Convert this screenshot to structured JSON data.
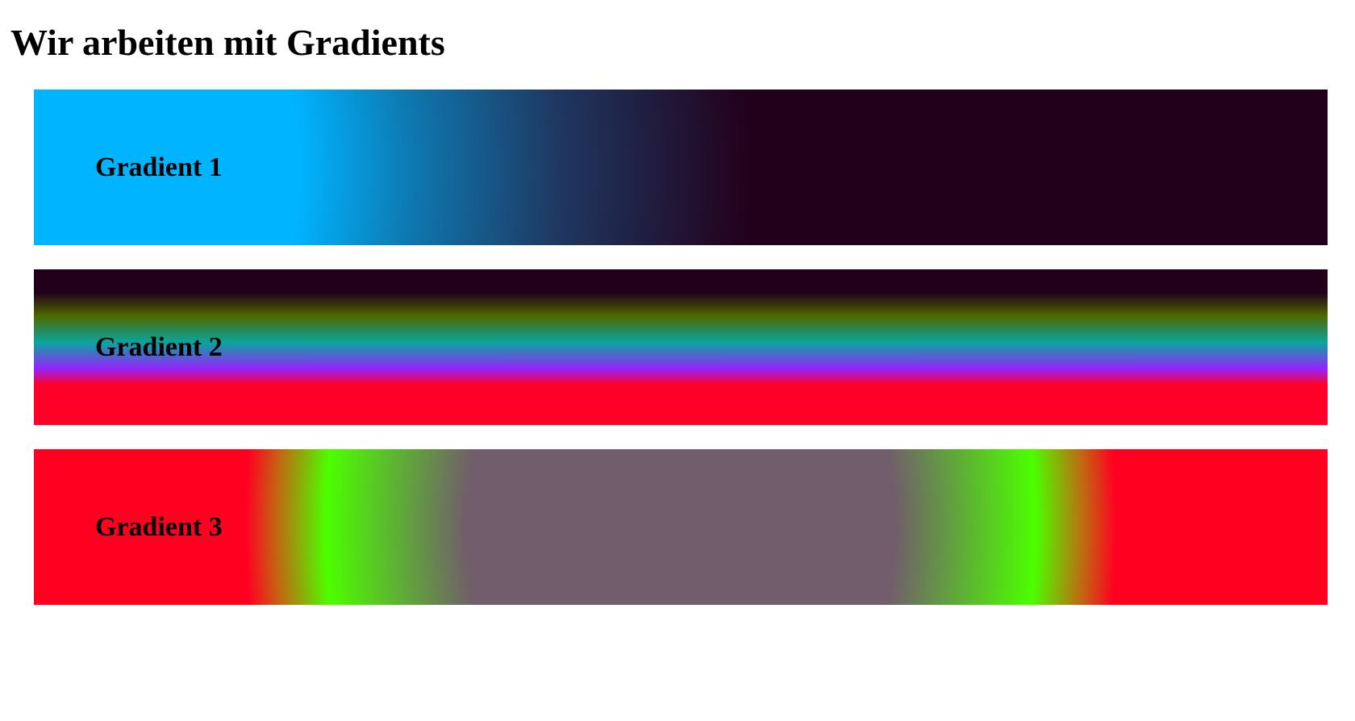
{
  "page": {
    "title": "Wir arbeiten mit Gradients"
  },
  "gradients": [
    {
      "label": "Gradient 1",
      "colors": [
        "#00b4ff",
        "#0e78b0",
        "#1f3862",
        "#22001a"
      ]
    },
    {
      "label": "Gradient 2",
      "colors": [
        "#22001a",
        "#4d6a00",
        "#0aa59e",
        "#9622ff",
        "#ff0028"
      ]
    },
    {
      "label": "Gradient 3",
      "colors": [
        "#ff0020",
        "#4cff00",
        "#715d6b"
      ]
    }
  ]
}
